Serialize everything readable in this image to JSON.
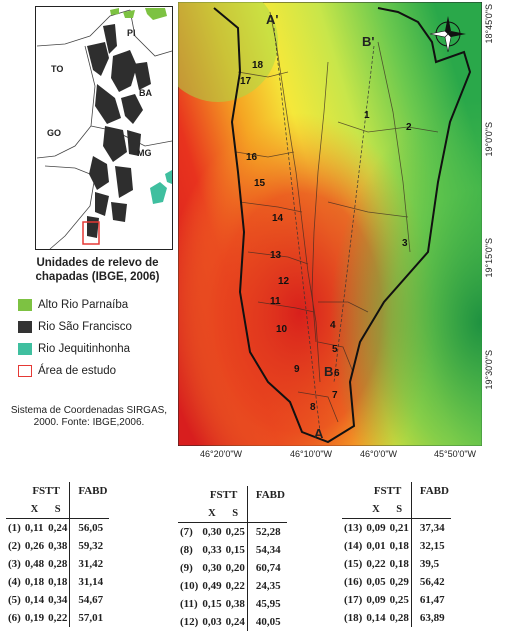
{
  "inset": {
    "states": [
      "PI",
      "TO",
      "BA",
      "GO",
      "MG"
    ]
  },
  "legend": {
    "title": "Unidades de relevo de chapadas (IBGE, 2006)",
    "items": [
      {
        "label": "Alto Rio Parnaíba",
        "color": "#7dc242"
      },
      {
        "label": "Rio São Francisco",
        "color": "#333333"
      },
      {
        "label": "Rio Jequitinhonha",
        "color": "#3fbf9f"
      },
      {
        "label": "Área de estudo",
        "color": "#e53935"
      }
    ]
  },
  "credit": "Sistema de Coordenadas SIRGAS, 2000. Fonte: IBGE,2006.",
  "map": {
    "profile_labels": [
      "A'",
      "B'",
      "A",
      "B"
    ],
    "points": [
      "1",
      "2",
      "3",
      "4",
      "5",
      "6",
      "7",
      "8",
      "9",
      "10",
      "11",
      "12",
      "13",
      "14",
      "15",
      "16",
      "17",
      "18"
    ],
    "lat_ticks": [
      "18°45'0\"S",
      "19°0'0\"S",
      "19°15'0\"S",
      "19°30'0\"S"
    ],
    "lon_ticks": [
      "46°20'0\"W",
      "46°10'0\"W",
      "46°0'0\"W",
      "45°50'0\"W"
    ]
  },
  "tables": {
    "header_fstt": "FSTT",
    "header_fabd": "FABD",
    "header_x": "X",
    "header_s": "S",
    "groups": [
      [
        {
          "id": "(1)",
          "x": "0,11",
          "s": "0,24",
          "fabd": "56,05"
        },
        {
          "id": "(2)",
          "x": "0,26",
          "s": "0,38",
          "fabd": "59,32"
        },
        {
          "id": "(3)",
          "x": "0,48",
          "s": "0,28",
          "fabd": "31,42"
        },
        {
          "id": "(4)",
          "x": "0,18",
          "s": "0,18",
          "fabd": "31,14"
        },
        {
          "id": "(5)",
          "x": "0,14",
          "s": "0,34",
          "fabd": "54,67"
        },
        {
          "id": "(6)",
          "x": "0,19",
          "s": "0,22",
          "fabd": "57,01"
        }
      ],
      [
        {
          "id": "(7)",
          "x": "0,30",
          "s": "0,25",
          "fabd": "52,28"
        },
        {
          "id": "(8)",
          "x": "0,33",
          "s": "0,15",
          "fabd": "54,34"
        },
        {
          "id": "(9)",
          "x": "0,30",
          "s": "0,20",
          "fabd": "60,74"
        },
        {
          "id": "(10)",
          "x": "0,49",
          "s": "0,22",
          "fabd": "24,35"
        },
        {
          "id": "(11)",
          "x": "0,15",
          "s": "0,38",
          "fabd": "45,95"
        },
        {
          "id": "(12)",
          "x": "0,03",
          "s": "0,24",
          "fabd": "40,05"
        }
      ],
      [
        {
          "id": "(13)",
          "x": "0,09",
          "s": "0,21",
          "fabd": "37,34"
        },
        {
          "id": "(14)",
          "x": "0,01",
          "s": "0,18",
          "fabd": "32,15"
        },
        {
          "id": "(15)",
          "x": "0,22",
          "s": "0,18",
          "fabd": "39,5"
        },
        {
          "id": "(16)",
          "x": "0,05",
          "s": "0,29",
          "fabd": "56,42"
        },
        {
          "id": "(17)",
          "x": "0,09",
          "s": "0,25",
          "fabd": "61,47"
        },
        {
          "id": "(18)",
          "x": "0,14",
          "s": "0,28",
          "fabd": "63,89"
        }
      ]
    ]
  }
}
